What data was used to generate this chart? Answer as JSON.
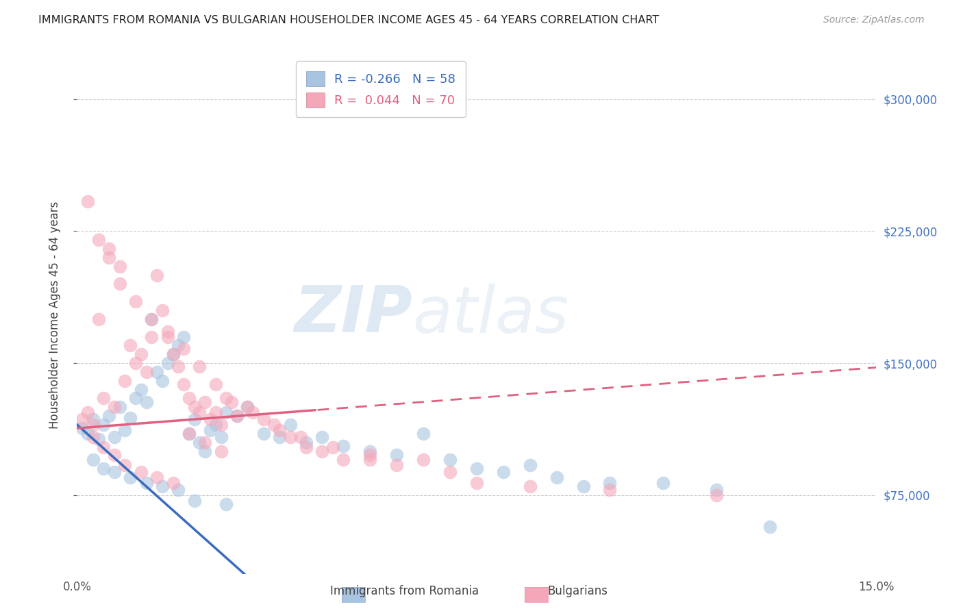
{
  "title": "IMMIGRANTS FROM ROMANIA VS BULGARIAN HOUSEHOLDER INCOME AGES 45 - 64 YEARS CORRELATION CHART",
  "source": "Source: ZipAtlas.com",
  "ylabel": "Householder Income Ages 45 - 64 years",
  "romania_color": "#a8c4e0",
  "bulgaria_color": "#f4a7b9",
  "romania_line_color": "#3a6bbf",
  "bulgaria_line_color": "#e06080",
  "romania_label": "Immigrants from Romania",
  "bulgaria_label": "Bulgarians",
  "romania_R": "-0.266",
  "romania_N": "58",
  "bulgaria_R": "0.044",
  "bulgaria_N": "70",
  "watermark": "ZIPatlas",
  "xmin": 0.0,
  "xmax": 0.15,
  "ymin": 30000,
  "ymax": 325000,
  "yticks": [
    75000,
    150000,
    225000,
    300000
  ],
  "right_ytick_labels": [
    "$75,000",
    "$150,000",
    "$225,000",
    "$300,000"
  ],
  "romania_intercept": 115000,
  "romania_slope": -2700000,
  "bulgaria_intercept": 113000,
  "bulgaria_slope": 230000,
  "bulgaria_solid_cutoff": 0.045,
  "romania_scatter_x": [
    0.001,
    0.002,
    0.003,
    0.004,
    0.005,
    0.006,
    0.007,
    0.008,
    0.009,
    0.01,
    0.011,
    0.012,
    0.013,
    0.014,
    0.015,
    0.016,
    0.017,
    0.018,
    0.019,
    0.02,
    0.021,
    0.022,
    0.023,
    0.024,
    0.025,
    0.026,
    0.027,
    0.028,
    0.03,
    0.032,
    0.035,
    0.038,
    0.04,
    0.043,
    0.046,
    0.05,
    0.055,
    0.06,
    0.065,
    0.07,
    0.075,
    0.08,
    0.085,
    0.09,
    0.095,
    0.1,
    0.11,
    0.12,
    0.13,
    0.003,
    0.005,
    0.007,
    0.01,
    0.013,
    0.016,
    0.019,
    0.022,
    0.028
  ],
  "romania_scatter_y": [
    113000,
    110000,
    118000,
    107000,
    115000,
    120000,
    108000,
    125000,
    112000,
    119000,
    130000,
    135000,
    128000,
    175000,
    145000,
    140000,
    150000,
    155000,
    160000,
    165000,
    110000,
    118000,
    105000,
    100000,
    112000,
    115000,
    108000,
    122000,
    120000,
    125000,
    110000,
    108000,
    115000,
    105000,
    108000,
    103000,
    100000,
    98000,
    110000,
    95000,
    90000,
    88000,
    92000,
    85000,
    80000,
    82000,
    82000,
    78000,
    57000,
    95000,
    90000,
    88000,
    85000,
    82000,
    80000,
    78000,
    72000,
    70000
  ],
  "bulgaria_scatter_x": [
    0.001,
    0.002,
    0.003,
    0.004,
    0.005,
    0.006,
    0.007,
    0.008,
    0.009,
    0.01,
    0.011,
    0.012,
    0.013,
    0.014,
    0.015,
    0.016,
    0.017,
    0.018,
    0.019,
    0.02,
    0.021,
    0.022,
    0.023,
    0.024,
    0.025,
    0.026,
    0.027,
    0.028,
    0.03,
    0.032,
    0.035,
    0.038,
    0.04,
    0.043,
    0.046,
    0.05,
    0.055,
    0.06,
    0.065,
    0.07,
    0.075,
    0.085,
    0.1,
    0.12,
    0.003,
    0.005,
    0.007,
    0.009,
    0.012,
    0.015,
    0.018,
    0.021,
    0.024,
    0.027,
    0.002,
    0.004,
    0.006,
    0.008,
    0.011,
    0.014,
    0.017,
    0.02,
    0.023,
    0.026,
    0.029,
    0.033,
    0.037,
    0.042,
    0.048,
    0.055
  ],
  "bulgaria_scatter_y": [
    118000,
    122000,
    115000,
    175000,
    130000,
    210000,
    125000,
    195000,
    140000,
    160000,
    150000,
    155000,
    145000,
    165000,
    200000,
    180000,
    165000,
    155000,
    148000,
    138000,
    130000,
    125000,
    122000,
    128000,
    118000,
    122000,
    115000,
    130000,
    120000,
    125000,
    118000,
    112000,
    108000,
    102000,
    100000,
    95000,
    98000,
    92000,
    95000,
    88000,
    82000,
    80000,
    78000,
    75000,
    108000,
    102000,
    98000,
    92000,
    88000,
    85000,
    82000,
    110000,
    105000,
    100000,
    242000,
    220000,
    215000,
    205000,
    185000,
    175000,
    168000,
    158000,
    148000,
    138000,
    128000,
    122000,
    115000,
    108000,
    102000,
    95000
  ]
}
